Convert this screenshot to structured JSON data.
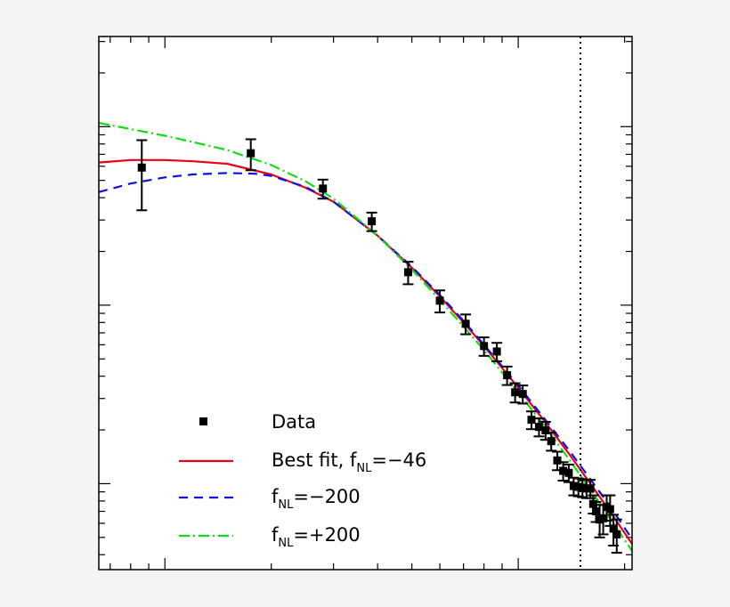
{
  "chart_data": {
    "type": "scatter",
    "title": "",
    "xlabel": "",
    "ylabel": "",
    "x_scale": "log",
    "y_scale": "log",
    "xlim": [
      6.5,
      210
    ],
    "ylim": [
      0.033,
      32
    ],
    "grid": false,
    "legend_position": "bottom-left",
    "vertical_reference_line": {
      "x": 150,
      "style": "dotted",
      "color": "#000000"
    },
    "legend": {
      "data_label": "Data",
      "best_fit_label": {
        "prefix": "Best fit, f",
        "sub": "NL",
        "suffix": "=−46"
      },
      "minus200_label": {
        "prefix": "f",
        "sub": "NL",
        "suffix": "=−200"
      },
      "plus200_label": {
        "prefix": "f",
        "sub": "NL",
        "suffix": "=+200"
      }
    },
    "data_points": [
      {
        "x": 8.6,
        "y": 5.9,
        "err": 2.5
      },
      {
        "x": 17.5,
        "y": 7.1,
        "err": 1.4
      },
      {
        "x": 28.0,
        "y": 4.5,
        "err": 0.55
      },
      {
        "x": 38.5,
        "y": 2.95,
        "err": 0.35
      },
      {
        "x": 48.8,
        "y": 1.53,
        "err": 0.22
      },
      {
        "x": 60.0,
        "y": 1.06,
        "err": 0.15
      },
      {
        "x": 71.0,
        "y": 0.787,
        "err": 0.1
      },
      {
        "x": 80.0,
        "y": 0.59,
        "err": 0.07
      },
      {
        "x": 87.0,
        "y": 0.55,
        "err": 0.065
      },
      {
        "x": 93.0,
        "y": 0.405,
        "err": 0.048
      },
      {
        "x": 98.0,
        "y": 0.325,
        "err": 0.04
      },
      {
        "x": 103.0,
        "y": 0.318,
        "err": 0.037
      },
      {
        "x": 109.0,
        "y": 0.228,
        "err": 0.026
      },
      {
        "x": 114.5,
        "y": 0.208,
        "err": 0.024
      },
      {
        "x": 119.5,
        "y": 0.199,
        "err": 0.023
      },
      {
        "x": 124.0,
        "y": 0.173,
        "err": 0.02
      },
      {
        "x": 129.0,
        "y": 0.135,
        "err": 0.016
      },
      {
        "x": 134.0,
        "y": 0.118,
        "err": 0.014
      },
      {
        "x": 139.0,
        "y": 0.115,
        "err": 0.013
      },
      {
        "x": 143.5,
        "y": 0.097,
        "err": 0.011
      },
      {
        "x": 148.0,
        "y": 0.096,
        "err": 0.011
      },
      {
        "x": 152.0,
        "y": 0.095,
        "err": 0.011
      },
      {
        "x": 156.0,
        "y": 0.094,
        "err": 0.011
      },
      {
        "x": 160.0,
        "y": 0.094,
        "err": 0.011
      },
      {
        "x": 163.0,
        "y": 0.077,
        "err": 0.009
      },
      {
        "x": 166.0,
        "y": 0.07,
        "err": 0.009
      },
      {
        "x": 170.0,
        "y": 0.063,
        "err": 0.013
      },
      {
        "x": 174.0,
        "y": 0.064,
        "err": 0.012
      },
      {
        "x": 178.0,
        "y": 0.074,
        "err": 0.012
      },
      {
        "x": 182.0,
        "y": 0.072,
        "err": 0.014
      },
      {
        "x": 186.0,
        "y": 0.056,
        "err": 0.011
      },
      {
        "x": 190.0,
        "y": 0.052,
        "err": 0.011
      }
    ],
    "series": [
      {
        "key": "best_fit",
        "color": "#e8001a",
        "dash": "",
        "x": [
          6.5,
          8.0,
          10.0,
          12.0,
          15.0,
          20.0,
          25.0,
          30.0,
          40.0,
          50.0,
          60.0,
          70.0,
          80.0,
          90.0,
          100.0,
          120.0,
          140.0,
          160.0,
          180.0,
          210.0
        ],
        "y": [
          6.3,
          6.5,
          6.5,
          6.4,
          6.2,
          5.4,
          4.55,
          3.8,
          2.45,
          1.62,
          1.12,
          0.8,
          0.59,
          0.445,
          0.345,
          0.218,
          0.145,
          0.1,
          0.072,
          0.046
        ]
      },
      {
        "key": "minus200",
        "color": "#1010e0",
        "dash": "10,7",
        "x": [
          6.5,
          8.0,
          10.0,
          12.0,
          15.0,
          18.0,
          20.0,
          25.0,
          30.0,
          40.0,
          50.0,
          60.0,
          70.0,
          80.0,
          90.0,
          100.0,
          120.0,
          140.0,
          160.0,
          180.0,
          210.0
        ],
        "y": [
          4.3,
          4.8,
          5.2,
          5.4,
          5.5,
          5.45,
          5.3,
          4.6,
          3.8,
          2.45,
          1.64,
          1.14,
          0.82,
          0.6,
          0.455,
          0.355,
          0.225,
          0.152,
          0.106,
          0.077,
          0.049
        ]
      },
      {
        "key": "plus200",
        "color": "#10dd10",
        "dash": "12,4,2,4",
        "x": [
          6.5,
          8.0,
          10.0,
          12.0,
          15.0,
          20.0,
          25.0,
          30.0,
          40.0,
          50.0,
          60.0,
          70.0,
          80.0,
          90.0,
          100.0,
          120.0,
          140.0,
          160.0,
          180.0,
          210.0
        ],
        "y": [
          10.5,
          9.7,
          8.9,
          8.2,
          7.4,
          6.1,
          4.95,
          3.95,
          2.45,
          1.58,
          1.07,
          0.76,
          0.56,
          0.42,
          0.325,
          0.205,
          0.135,
          0.093,
          0.066,
          0.042
        ]
      }
    ]
  }
}
